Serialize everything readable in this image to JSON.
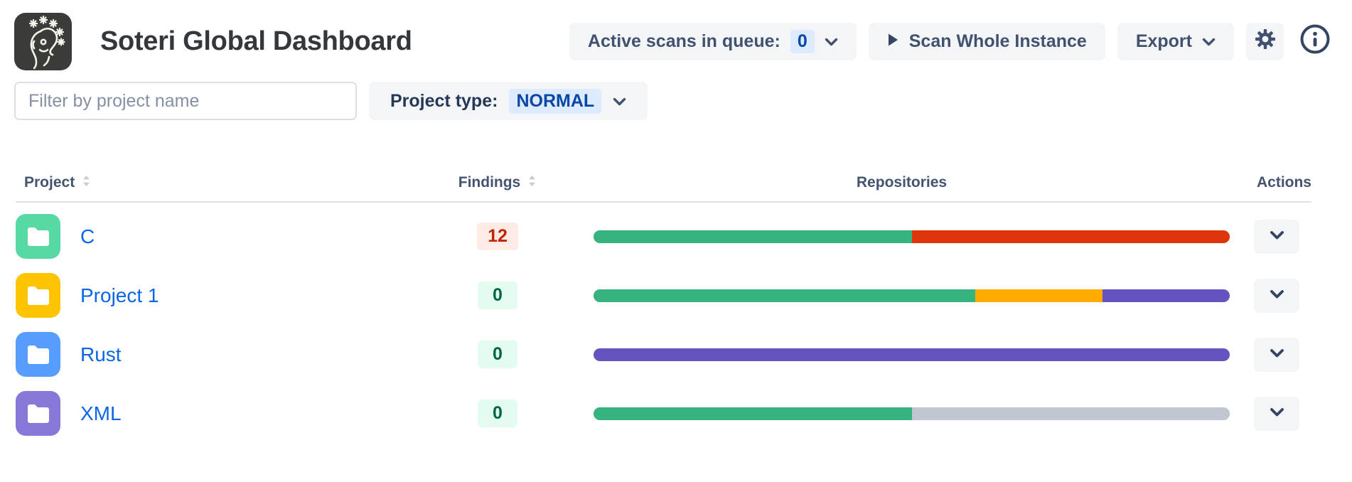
{
  "header": {
    "title": "Soteri Global Dashboard",
    "active_scans_label": "Active scans in queue:",
    "active_scans_count": "0",
    "scan_whole_instance_label": "Scan Whole Instance",
    "export_label": "Export"
  },
  "filters": {
    "search_placeholder": "Filter by project name",
    "project_type_label": "Project type:",
    "project_type_value": "NORMAL"
  },
  "table": {
    "columns": {
      "project": "Project",
      "findings": "Findings",
      "repositories": "Repositories",
      "actions": "Actions"
    },
    "rows": [
      {
        "project": "C",
        "folder_color": "#57D9A3",
        "findings": "12",
        "findings_status": "error",
        "segments": [
          {
            "color_name": "green",
            "pct": 50
          },
          {
            "color_name": "red",
            "pct": 50
          }
        ]
      },
      {
        "project": "Project 1",
        "folder_color": "#FFC400",
        "findings": "0",
        "findings_status": "success",
        "segments": [
          {
            "color_name": "green",
            "pct": 60
          },
          {
            "color_name": "orange",
            "pct": 20
          },
          {
            "color_name": "purple",
            "pct": 20
          }
        ]
      },
      {
        "project": "Rust",
        "folder_color": "#579DFF",
        "findings": "0",
        "findings_status": "success",
        "segments": [
          {
            "color_name": "purple",
            "pct": 100
          }
        ]
      },
      {
        "project": "XML",
        "folder_color": "#8777D9",
        "findings": "0",
        "findings_status": "success",
        "segments": [
          {
            "color_name": "green",
            "pct": 50
          },
          {
            "color_name": "gray",
            "pct": 50
          }
        ]
      }
    ]
  },
  "colors": {
    "segments": {
      "green": "#36B37E",
      "red": "#DE350B",
      "orange": "#FFAB00",
      "purple": "#6554C0",
      "gray": "#C1C7D0"
    },
    "badge_blue_bg": "#DEEBFF",
    "badge_blue_text": "#0747A6",
    "badge_red_bg": "#FFEBE6",
    "badge_red_text": "#BF2600",
    "badge_green_bg": "#E3FCEF",
    "badge_green_text": "#006644",
    "button_bg": "#F4F5F7",
    "button_text": "#42526E",
    "link_blue": "#0C66E4"
  }
}
